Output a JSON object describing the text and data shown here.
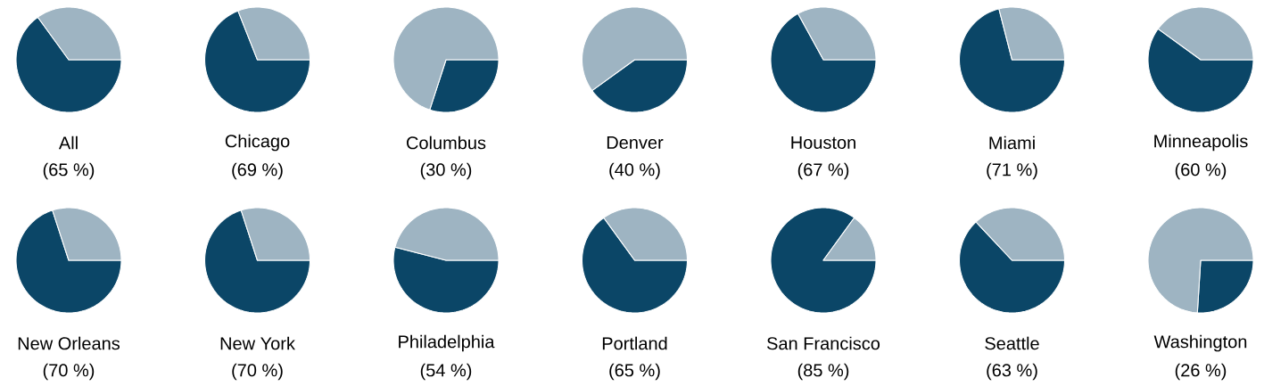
{
  "chart_data": [
    {
      "type": "pie",
      "title": "All",
      "categories": [
        null,
        null
      ],
      "values": [
        65,
        35
      ],
      "colors": [
        "#0b4667",
        "#9eb4c2"
      ],
      "value_labels": [
        "(65 %)",
        null
      ]
    },
    {
      "type": "pie",
      "title": "Chicago",
      "categories": [
        null,
        null
      ],
      "values": [
        69,
        31
      ],
      "colors": [
        "#0b4667",
        "#9eb4c2"
      ],
      "value_labels": [
        "(69 %)",
        null
      ]
    },
    {
      "type": "pie",
      "title": "Columbus",
      "categories": [
        null,
        null
      ],
      "values": [
        30,
        70
      ],
      "colors": [
        "#0b4667",
        "#9eb4c2"
      ],
      "value_labels": [
        "(30 %)",
        null
      ]
    },
    {
      "type": "pie",
      "title": "Denver",
      "categories": [
        null,
        null
      ],
      "values": [
        40,
        60
      ],
      "colors": [
        "#0b4667",
        "#9eb4c2"
      ],
      "value_labels": [
        "(40 %)",
        null
      ]
    },
    {
      "type": "pie",
      "title": "Houston",
      "categories": [
        null,
        null
      ],
      "values": [
        67,
        33
      ],
      "colors": [
        "#0b4667",
        "#9eb4c2"
      ],
      "value_labels": [
        "(67 %)",
        null
      ]
    },
    {
      "type": "pie",
      "title": "Miami",
      "categories": [
        null,
        null
      ],
      "values": [
        71,
        29
      ],
      "colors": [
        "#0b4667",
        "#9eb4c2"
      ],
      "value_labels": [
        "(71 %)",
        null
      ]
    },
    {
      "type": "pie",
      "title": "Minneapolis",
      "categories": [
        null,
        null
      ],
      "values": [
        60,
        40
      ],
      "colors": [
        "#0b4667",
        "#9eb4c2"
      ],
      "value_labels": [
        "(60 %)",
        null
      ]
    },
    {
      "type": "pie",
      "title": "New Orleans",
      "categories": [
        null,
        null
      ],
      "values": [
        70,
        30
      ],
      "colors": [
        "#0b4667",
        "#9eb4c2"
      ],
      "value_labels": [
        "(70 %)",
        null
      ]
    },
    {
      "type": "pie",
      "title": "New York",
      "categories": [
        null,
        null
      ],
      "values": [
        70,
        30
      ],
      "colors": [
        "#0b4667",
        "#9eb4c2"
      ],
      "value_labels": [
        "(70 %)",
        null
      ]
    },
    {
      "type": "pie",
      "title": "Philadelphia",
      "categories": [
        null,
        null
      ],
      "values": [
        54,
        46
      ],
      "colors": [
        "#0b4667",
        "#9eb4c2"
      ],
      "value_labels": [
        "(54 %)",
        null
      ]
    },
    {
      "type": "pie",
      "title": "Portland",
      "categories": [
        null,
        null
      ],
      "values": [
        65,
        35
      ],
      "colors": [
        "#0b4667",
        "#9eb4c2"
      ],
      "value_labels": [
        "(65 %)",
        null
      ]
    },
    {
      "type": "pie",
      "title": "San Francisco",
      "categories": [
        null,
        null
      ],
      "values": [
        85,
        15
      ],
      "colors": [
        "#0b4667",
        "#9eb4c2"
      ],
      "value_labels": [
        "(85 %)",
        null
      ]
    },
    {
      "type": "pie",
      "title": "Seattle",
      "categories": [
        null,
        null
      ],
      "values": [
        63,
        37
      ],
      "colors": [
        "#0b4667",
        "#9eb4c2"
      ],
      "value_labels": [
        "(63 %)",
        null
      ]
    },
    {
      "type": "pie",
      "title": "Washington",
      "categories": [
        null,
        null
      ],
      "values": [
        26,
        74
      ],
      "colors": [
        "#0b4667",
        "#9eb4c2"
      ],
      "value_labels": [
        "(26 %)",
        null
      ]
    }
  ]
}
